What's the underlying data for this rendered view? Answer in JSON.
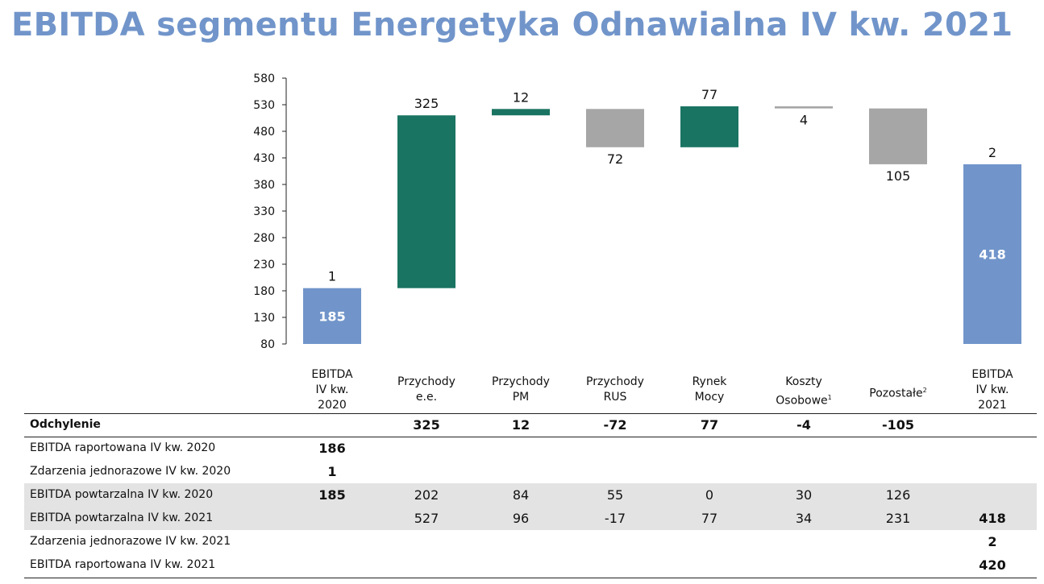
{
  "title": "EBITDA segmentu Energetyka Odnawialna IV kw. 2021",
  "chart_data": {
    "type": "bar",
    "subtype": "waterfall",
    "ylim": [
      80,
      580
    ],
    "yticks": [
      "580",
      "530",
      "480",
      "430",
      "380",
      "330",
      "280",
      "230",
      "180",
      "130",
      "80"
    ],
    "grid": false,
    "bars": [
      {
        "category": [
          "EBITDA",
          "IV kw.",
          "2020"
        ],
        "kind": "total",
        "start": 80,
        "end": 185,
        "value_label": "185",
        "top_label": "1",
        "color": "#7195ca"
      },
      {
        "category": [
          "Przychody",
          "e.e."
        ],
        "kind": "increase",
        "start": 185,
        "end": 510,
        "top_label": "325",
        "color": "#1a7462"
      },
      {
        "category": [
          "Przychody",
          "PM"
        ],
        "kind": "increase",
        "start": 510,
        "end": 522,
        "top_label": "12",
        "color": "#1a7462"
      },
      {
        "category": [
          "Przychody",
          "RUS"
        ],
        "kind": "decrease",
        "start": 522,
        "end": 450,
        "bottom_label": "72",
        "color": "#a6a6a6"
      },
      {
        "category": [
          "Rynek",
          "Mocy"
        ],
        "kind": "increase",
        "start": 450,
        "end": 527,
        "top_label": "77",
        "color": "#1a7462"
      },
      {
        "category": [
          "Koszty",
          "Osobowe"
        ],
        "category_sup": "1",
        "kind": "decrease",
        "start": 527,
        "end": 523,
        "bottom_label": "4",
        "color": "#a6a6a6"
      },
      {
        "category": [
          "Pozostałe"
        ],
        "category_sup": "2",
        "kind": "decrease",
        "start": 523,
        "end": 418,
        "bottom_label": "105",
        "color": "#a6a6a6"
      },
      {
        "category": [
          "EBITDA",
          "IV kw.",
          "2021"
        ],
        "kind": "total",
        "start": 80,
        "end": 418,
        "value_label": "418",
        "top_label": "2",
        "color": "#7195ca"
      }
    ]
  },
  "table": {
    "rows": [
      {
        "label": "Odchylenie",
        "bold_label": true,
        "shade": false,
        "cells": [
          "",
          "325",
          "12",
          "-72",
          "77",
          "-4",
          "-105",
          ""
        ],
        "bold": [
          false,
          true,
          true,
          true,
          true,
          true,
          true,
          false
        ]
      },
      {
        "label": "EBITDA raportowana IV kw. 2020",
        "shade": false,
        "cells": [
          "186",
          "",
          "",
          "",
          "",
          "",
          "",
          ""
        ],
        "bold": [
          true,
          false,
          false,
          false,
          false,
          false,
          false,
          false
        ]
      },
      {
        "label": "Zdarzenia jednorazowe IV kw. 2020",
        "shade": false,
        "cells": [
          "1",
          "",
          "",
          "",
          "",
          "",
          "",
          ""
        ],
        "bold": [
          true,
          false,
          false,
          false,
          false,
          false,
          false,
          false
        ]
      },
      {
        "label": "EBITDA powtarzalna IV kw. 2020",
        "shade": true,
        "cells": [
          "185",
          "202",
          "84",
          "55",
          "0",
          "30",
          "126",
          ""
        ],
        "bold": [
          true,
          false,
          false,
          false,
          false,
          false,
          false,
          false
        ]
      },
      {
        "label": "EBITDA powtarzalna IV kw. 2021",
        "shade": true,
        "cells": [
          "",
          "527",
          "96",
          "-17",
          "77",
          "34",
          "231",
          "418"
        ],
        "bold": [
          false,
          false,
          false,
          false,
          false,
          false,
          false,
          true
        ]
      },
      {
        "label": "Zdarzenia jednorazowe IV kw. 2021",
        "shade": false,
        "cells": [
          "",
          "",
          "",
          "",
          "",
          "",
          "",
          "2"
        ],
        "bold": [
          false,
          false,
          false,
          false,
          false,
          false,
          false,
          true
        ]
      },
      {
        "label": "EBITDA raportowana IV kw. 2021",
        "shade": false,
        "cells": [
          "",
          "",
          "",
          "",
          "",
          "",
          "",
          "420"
        ],
        "bold": [
          false,
          false,
          false,
          false,
          false,
          false,
          false,
          true
        ]
      }
    ]
  }
}
